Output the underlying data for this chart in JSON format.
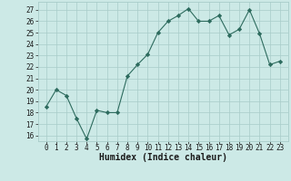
{
  "xlabel": "Humidex (Indice chaleur)",
  "x": [
    0,
    1,
    2,
    3,
    4,
    5,
    6,
    7,
    8,
    9,
    10,
    11,
    12,
    13,
    14,
    15,
    16,
    17,
    18,
    19,
    20,
    21,
    22,
    23
  ],
  "y": [
    18.5,
    20.0,
    19.5,
    17.5,
    15.7,
    18.2,
    18.0,
    18.0,
    21.2,
    22.2,
    23.1,
    25.0,
    26.0,
    26.5,
    27.1,
    26.0,
    26.0,
    26.5,
    24.8,
    25.3,
    27.0,
    24.9,
    22.2,
    22.5
  ],
  "line_color": "#2d6b5e",
  "marker": "D",
  "marker_size": 2.2,
  "bg_color": "#cce9e6",
  "grid_color": "#a8ccc9",
  "tick_label_color": "#1a1a1a",
  "ylim": [
    15.5,
    27.7
  ],
  "yticks": [
    16,
    17,
    18,
    19,
    20,
    21,
    22,
    23,
    24,
    25,
    26,
    27
  ],
  "xticks": [
    0,
    1,
    2,
    3,
    4,
    5,
    6,
    7,
    8,
    9,
    10,
    11,
    12,
    13,
    14,
    15,
    16,
    17,
    18,
    19,
    20,
    21,
    22,
    23
  ],
  "font_size": 5.5,
  "label_font_size": 7.0
}
